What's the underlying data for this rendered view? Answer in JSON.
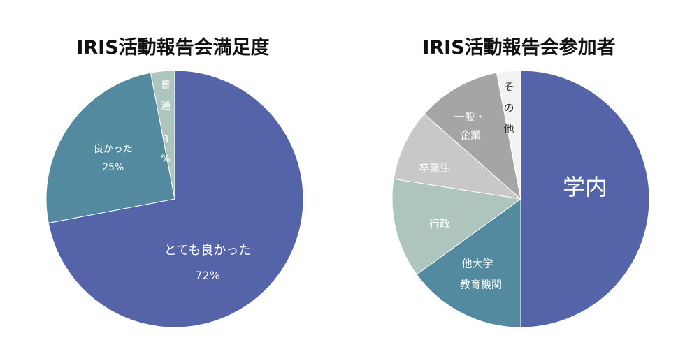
{
  "chart_data": [
    {
      "type": "pie",
      "title": "IRIS活動報告会満足度",
      "slices": [
        {
          "label": "とても良かった",
          "value": 72,
          "value_label": "72%",
          "color": "#5563a8"
        },
        {
          "label": "良かった",
          "value": 25,
          "value_label": "25%",
          "color": "#548aa0"
        },
        {
          "label": "普通",
          "value": 3,
          "value_label": "3%",
          "color": "#adc5bd"
        }
      ],
      "start": "12 o'clock",
      "direction": "clockwise",
      "data_labels": "inside"
    },
    {
      "type": "pie",
      "title": "IRIS活動報告会参加者",
      "slices": [
        {
          "label": "学内",
          "value": 50,
          "color": "#5563a8"
        },
        {
          "label": "他大学 教育機関",
          "value": 15,
          "color": "#548aa0"
        },
        {
          "label": "行政",
          "value": 12.5,
          "color": "#adc5bd"
        },
        {
          "label": "卒業生",
          "value": 9,
          "color": "#c8c8c8"
        },
        {
          "label": "一般・企業",
          "value": 10.5,
          "color": "#a5a5a5"
        },
        {
          "label": "その他",
          "value": 3,
          "color": "#f2f2f2"
        }
      ],
      "start": "12 o'clock",
      "direction": "clockwise",
      "data_labels": "inside, no values shown"
    }
  ]
}
